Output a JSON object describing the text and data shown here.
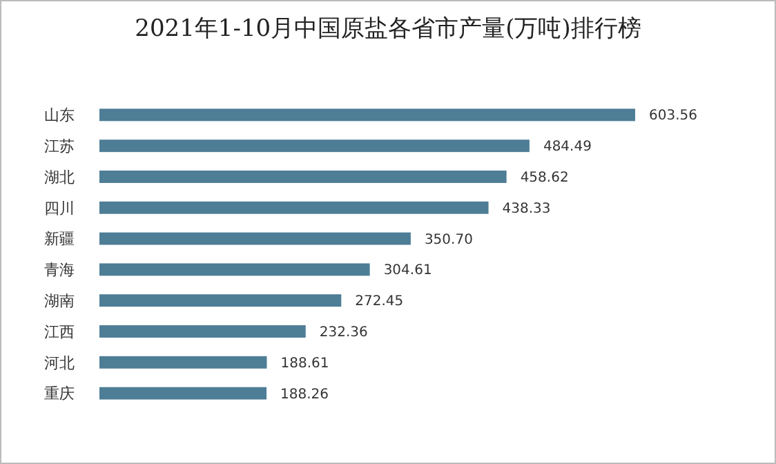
{
  "chart_data": {
    "type": "bar",
    "orientation": "horizontal",
    "title": "2021年1-10月中国原盐各省市产量(万吨)排行榜",
    "categories": [
      "山东",
      "江苏",
      "湖北",
      "四川",
      "新疆",
      "青海",
      "湖南",
      "江西",
      "河北",
      "重庆"
    ],
    "values": [
      603.56,
      484.49,
      458.62,
      438.33,
      350.7,
      304.61,
      272.45,
      232.36,
      188.61,
      188.26
    ],
    "value_labels": [
      "603.56",
      "484.49",
      "458.62",
      "438.33",
      "350.70",
      "304.61",
      "272.45",
      "232.36",
      "188.61",
      "188.26"
    ],
    "color": "#4e7d96"
  }
}
